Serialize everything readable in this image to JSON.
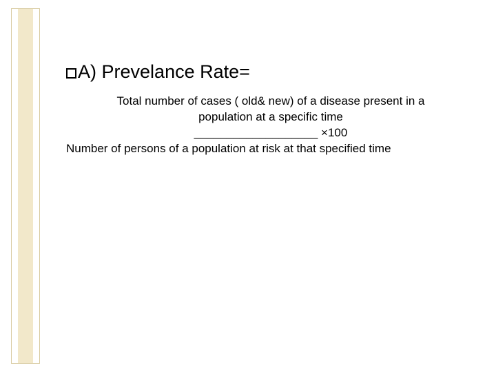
{
  "slide": {
    "background_color": "#ffffff",
    "stripe_color": "#f2e8ca",
    "frame_border_color": "#d8caa0",
    "text_color": "#000000",
    "heading_fontsize": 27,
    "body_fontsize": 17,
    "heading_prefix": "A)",
    "heading_text": "Prevelance Rate=",
    "numerator_line1": "Total number of cases ( old& new) of a disease present in a",
    "numerator_line2": "population at a specific time",
    "divider_underscores": "___________________",
    "multiplier": "×100",
    "denominator": "Number of persons of a population at risk at that specified time"
  }
}
